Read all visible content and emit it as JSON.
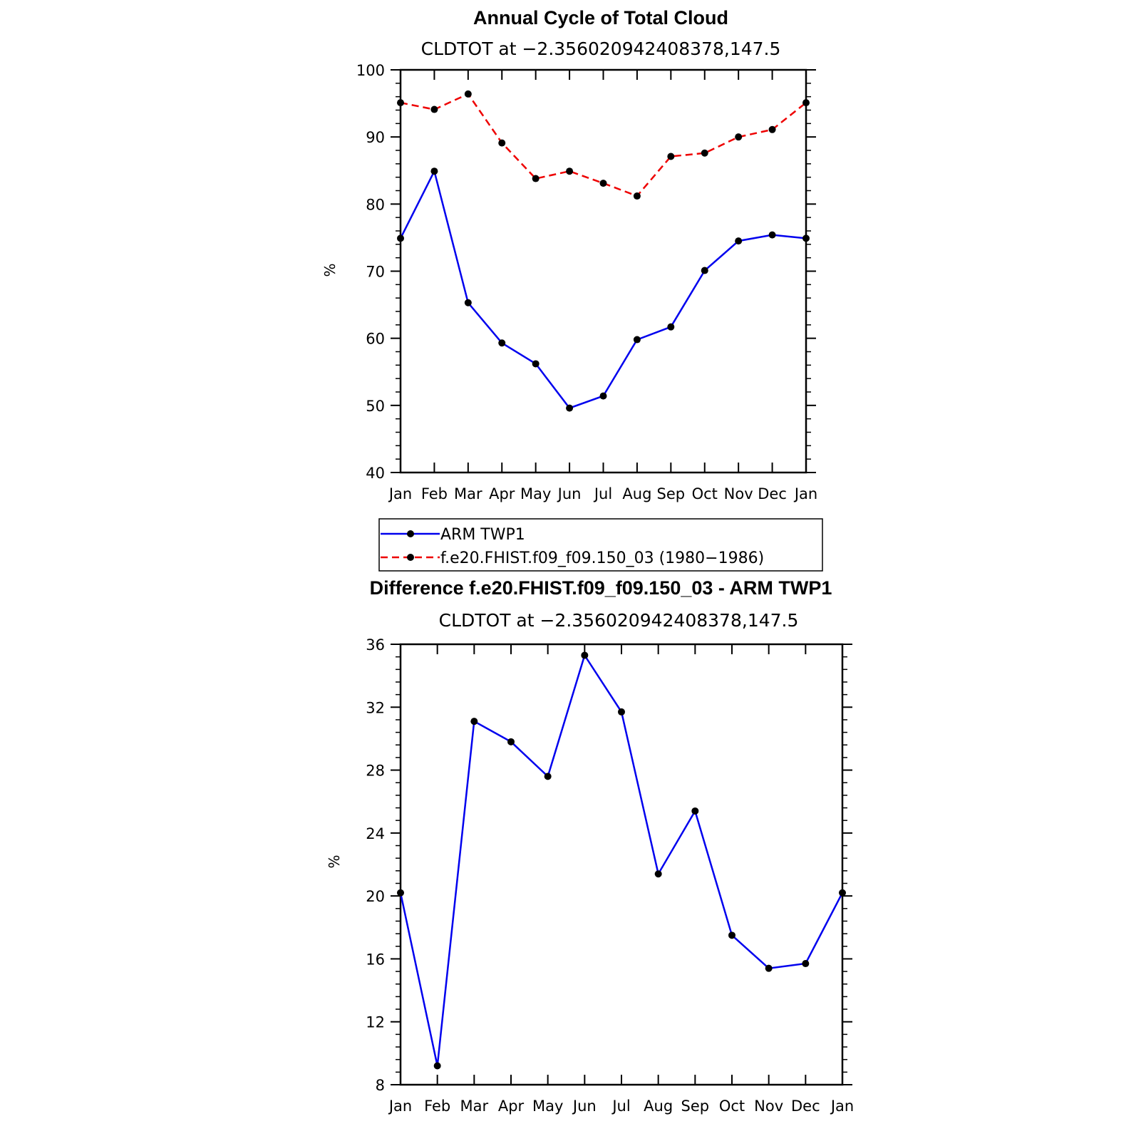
{
  "chart_data": [
    {
      "type": "line",
      "title": "Annual Cycle of Total Cloud",
      "subtitle": "CLDTOT at −2.356020942408378,147.5",
      "xlabel": "",
      "ylabel": "%",
      "categories": [
        "Jan",
        "Feb",
        "Mar",
        "Apr",
        "May",
        "Jun",
        "Jul",
        "Aug",
        "Sep",
        "Oct",
        "Nov",
        "Dec",
        "Jan"
      ],
      "ylim": [
        40,
        100
      ],
      "yticks": [
        40,
        50,
        60,
        70,
        80,
        90,
        100
      ],
      "yminor_step": 2,
      "grid": false,
      "series": [
        {
          "name": "ARM TWP1",
          "color": "#0000ee",
          "dash": "solid",
          "marker": "circle",
          "values": [
            74.9,
            84.9,
            65.3,
            59.3,
            56.2,
            49.6,
            51.4,
            59.8,
            61.7,
            70.1,
            74.5,
            75.4,
            74.9
          ]
        },
        {
          "name": "f.e20.FHIST.f09_f09.150_03 (1980−1986)",
          "color": "#ee0000",
          "dash": "dashed",
          "marker": "circle",
          "values": [
            95.1,
            94.1,
            96.4,
            89.1,
            83.8,
            84.9,
            83.1,
            81.2,
            87.1,
            87.6,
            90.0,
            91.1,
            95.1
          ]
        }
      ],
      "legend": {
        "placement": "bottom",
        "items": [
          {
            "label": "ARM TWP1",
            "color": "#0000ee",
            "dash": "solid"
          },
          {
            "label": "f.e20.FHIST.f09_f09.150_03 (1980−1986)",
            "color": "#ee0000",
            "dash": "dashed"
          }
        ]
      }
    },
    {
      "type": "line",
      "title": "Difference f.e20.FHIST.f09_f09.150_03 - ARM TWP1",
      "subtitle": "CLDTOT at −2.356020942408378,147.5",
      "xlabel": "",
      "ylabel": "%",
      "categories": [
        "Jan",
        "Feb",
        "Mar",
        "Apr",
        "May",
        "Jun",
        "Jul",
        "Aug",
        "Sep",
        "Oct",
        "Nov",
        "Dec",
        "Jan"
      ],
      "ylim": [
        8,
        36
      ],
      "yticks": [
        8,
        12,
        16,
        20,
        24,
        28,
        32,
        36
      ],
      "yminor_step": 0.8,
      "grid": false,
      "series": [
        {
          "color": "#0000ee",
          "dash": "solid",
          "marker": "circle",
          "values": [
            20.2,
            9.2,
            31.1,
            29.8,
            27.6,
            35.3,
            31.7,
            21.4,
            25.4,
            17.5,
            15.4,
            15.7,
            20.2
          ]
        }
      ]
    }
  ]
}
